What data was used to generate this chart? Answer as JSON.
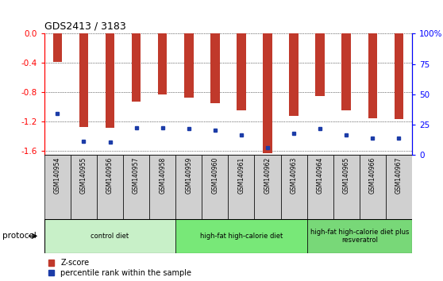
{
  "title": "GDS2413 / 3183",
  "samples": [
    "GSM140954",
    "GSM140955",
    "GSM140956",
    "GSM140957",
    "GSM140958",
    "GSM140959",
    "GSM140960",
    "GSM140961",
    "GSM140962",
    "GSM140963",
    "GSM140964",
    "GSM140965",
    "GSM140966",
    "GSM140967"
  ],
  "zscore": [
    -0.38,
    -1.27,
    -1.28,
    -0.93,
    -0.83,
    -0.87,
    -0.95,
    -1.05,
    -1.63,
    -1.12,
    -0.85,
    -1.05,
    -1.15,
    -1.17
  ],
  "percentile_left": [
    -1.09,
    -1.47,
    -1.48,
    -1.29,
    -1.28,
    -1.3,
    -1.32,
    -1.38,
    -1.56,
    -1.36,
    -1.3,
    -1.38,
    -1.43,
    -1.43
  ],
  "bar_color": "#c0392b",
  "dot_color": "#1c3ca8",
  "ylim_left": [
    -1.65,
    0.0
  ],
  "left_ticks": [
    0.0,
    -0.4,
    -0.8,
    -1.2,
    -1.6
  ],
  "right_ticks": [
    0,
    25,
    50,
    75,
    100
  ],
  "plot_bg": "white",
  "sample_bg": "#d0d0d0",
  "groups": [
    {
      "label": "control diet",
      "start": 0,
      "end": 4,
      "color": "#c8f0c8"
    },
    {
      "label": "high-fat high-calorie diet",
      "start": 5,
      "end": 9,
      "color": "#78e878"
    },
    {
      "label": "high-fat high-calorie diet plus\nresveratrol",
      "start": 10,
      "end": 13,
      "color": "#78d878"
    }
  ],
  "legend_items": [
    {
      "label": "Z-score",
      "color": "#c0392b"
    },
    {
      "label": "percentile rank within the sample",
      "color": "#1c3ca8"
    }
  ],
  "protocol_label": "protocol",
  "bar_width": 0.35
}
